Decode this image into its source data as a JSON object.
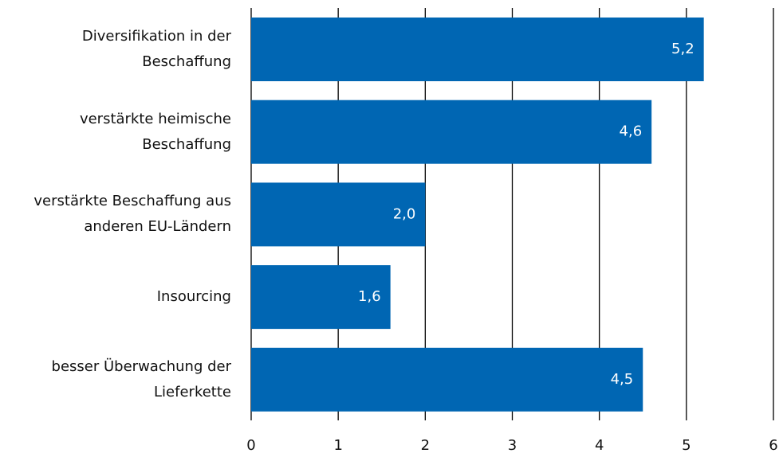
{
  "chart_data": {
    "type": "bar",
    "orientation": "horizontal",
    "categories": [
      "Diversifikation in der\nBeschaffung",
      "verstärkte heimische\nBeschaffung",
      "verstärkte Beschaffung aus\nanderen EU-Ländern",
      "Insourcing",
      "besser Überwachung der\nLieferkette"
    ],
    "values": [
      5.2,
      4.6,
      2.0,
      1.6,
      4.5
    ],
    "value_labels": [
      "5,2",
      "4,6",
      "2,0",
      "1,6",
      "4,5"
    ],
    "color": "#0066b3",
    "xlim": [
      0,
      6
    ],
    "xticks": [
      0,
      1,
      2,
      3,
      4,
      5,
      6
    ],
    "grid": true
  }
}
